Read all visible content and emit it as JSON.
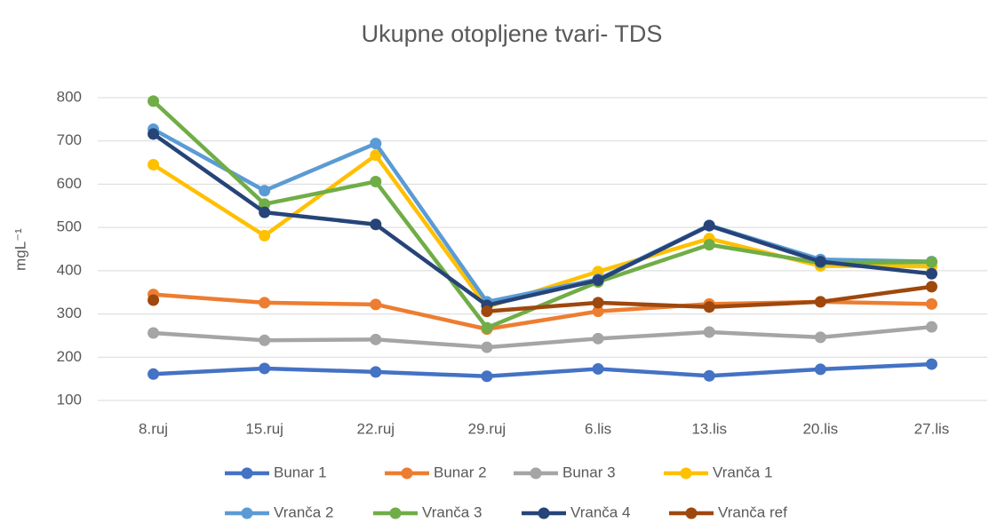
{
  "chart_data": {
    "type": "line",
    "title": "Ukupne otopljene tvari- TDS",
    "ylabel": "mgL⁻¹",
    "categories": [
      "8.ruj",
      "15.ruj",
      "22.ruj",
      "29.ruj",
      "6.lis",
      "13.lis",
      "20.lis",
      "27.lis"
    ],
    "series": [
      {
        "name": "Bunar 1",
        "color": "#4472c4",
        "values": [
          161,
          174,
          166,
          156,
          173,
          157,
          172,
          184
        ]
      },
      {
        "name": "Bunar 2",
        "color": "#ed7d31",
        "values": [
          345,
          326,
          322,
          265,
          306,
          323,
          328,
          323
        ]
      },
      {
        "name": "Bunar 3",
        "color": "#a5a5a5",
        "values": [
          256,
          239,
          241,
          223,
          243,
          258,
          246,
          270
        ]
      },
      {
        "name": "Vranča 1",
        "color": "#ffc000",
        "values": [
          645,
          481,
          667,
          316,
          398,
          474,
          411,
          410
        ]
      },
      {
        "name": "Vranča 2",
        "color": "#5b9bd5",
        "values": [
          727,
          585,
          694,
          328,
          380,
          505,
          426,
          421
        ]
      },
      {
        "name": "Vranča 3",
        "color": "#70ad47",
        "values": [
          792,
          554,
          606,
          268,
          374,
          460,
          418,
          420
        ]
      },
      {
        "name": "Vranča 4",
        "color": "#264478",
        "values": [
          716,
          535,
          507,
          320,
          378,
          504,
          421,
          393
        ]
      },
      {
        "name": "Vranča ref",
        "color": "#9e480e",
        "values": [
          332,
          null,
          null,
          306,
          326,
          316,
          328,
          363
        ]
      }
    ],
    "ylim": [
      100,
      800
    ],
    "yticks": [
      100,
      200,
      300,
      400,
      500,
      600,
      700,
      800
    ],
    "grid": true,
    "legend": "bottom"
  }
}
